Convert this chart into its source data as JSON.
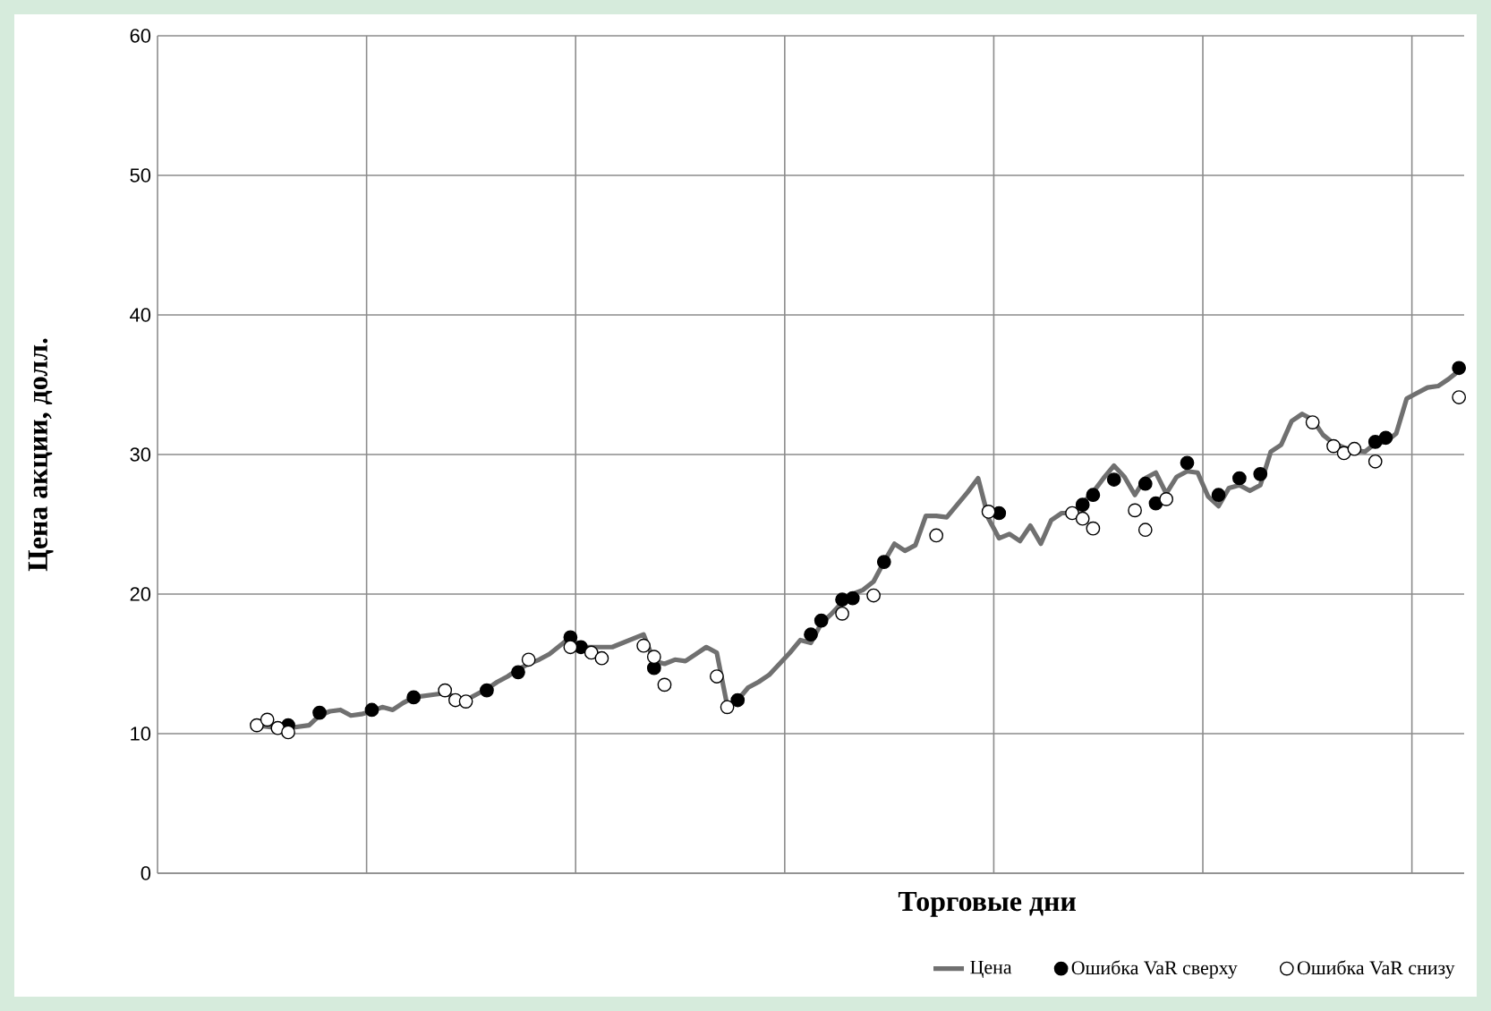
{
  "chart_data": {
    "type": "line",
    "xlabel": "Торговые дни",
    "ylabel": "Цена акции, долл.",
    "ylim": [
      0,
      60
    ],
    "yticks": [
      0,
      10,
      20,
      30,
      40,
      50,
      60
    ],
    "grid": true,
    "legend": "bottom",
    "categories": [
      null,
      null,
      null,
      null,
      null,
      null,
      null,
      null,
      null,
      null,
      null,
      null,
      null,
      null,
      null,
      null,
      null,
      null,
      null,
      null,
      null,
      null,
      null,
      null,
      null,
      null,
      null,
      null,
      null,
      null,
      null,
      null,
      null,
      null,
      null,
      null,
      null,
      null,
      null,
      null,
      null,
      null,
      null,
      null,
      null,
      null,
      null,
      null,
      null,
      null,
      null,
      null,
      null,
      null,
      null,
      null,
      null,
      null,
      null,
      null,
      null,
      null,
      null,
      null,
      null,
      null,
      null,
      null,
      null,
      null,
      null,
      null,
      null,
      null,
      null,
      null,
      null,
      null,
      null,
      null,
      null,
      null,
      null,
      null,
      null,
      null,
      null,
      null,
      null,
      null,
      null,
      null,
      null,
      null,
      null,
      null,
      null,
      null,
      null,
      null,
      null,
      null,
      null,
      null,
      null,
      null,
      null,
      null,
      null,
      null,
      null,
      null,
      null,
      null,
      null,
      null,
      null,
      null,
      null,
      null,
      null,
      null,
      null,
      null,
      null
    ],
    "series": [
      {
        "name": "Цена",
        "color": "#707070",
        "values": [
          null,
          null,
          null,
          null,
          null,
          null,
          null,
          null,
          null,
          10.6,
          10.5,
          10.4,
          10.4,
          10.5,
          10.6,
          11.3,
          11.6,
          11.7,
          11.3,
          11.4,
          11.6,
          11.9,
          11.7,
          12.2,
          12.6,
          12.7,
          12.8,
          12.9,
          12.6,
          12.4,
          12.8,
          13.2,
          13.7,
          14.1,
          14.6,
          15.0,
          15.3,
          15.7,
          16.3,
          16.9,
          16.2,
          16.2,
          16.2,
          16.2,
          16.5,
          16.8,
          17.1,
          15.2,
          15.0,
          15.3,
          15.2,
          15.7,
          16.2,
          15.8,
          12.0,
          12.4,
          13.3,
          13.7,
          14.2,
          15.0,
          15.8,
          16.7,
          16.5,
          17.9,
          18.6,
          19.4,
          20.0,
          20.3,
          20.9,
          22.3,
          23.6,
          23.1,
          23.5,
          25.6,
          25.6,
          25.5,
          26.4,
          27.3,
          28.3,
          25.4,
          24.0,
          24.3,
          23.8,
          24.9,
          23.6,
          25.3,
          25.8,
          25.8,
          26.5,
          27.3,
          28.3,
          29.2,
          28.4,
          27.1,
          28.3,
          28.7,
          27.2,
          28.4,
          28.8,
          28.7,
          27.0,
          26.3,
          27.6,
          27.8,
          27.4,
          27.8,
          30.2,
          30.7,
          32.4,
          32.9,
          32.5,
          31.4,
          30.8,
          30.5,
          30.3,
          30.2,
          30.8,
          30.9,
          31.5,
          34.0,
          34.4,
          34.8,
          34.9,
          35.4,
          36.0
        ]
      },
      {
        "name": "Ошибка VaR сверху",
        "type": "scatter",
        "marker": "circle",
        "color": "#000000",
        "values": [
          null,
          null,
          null,
          null,
          null,
          null,
          null,
          null,
          null,
          null,
          null,
          null,
          10.6,
          null,
          null,
          11.5,
          null,
          null,
          null,
          null,
          11.7,
          null,
          null,
          null,
          12.6,
          null,
          null,
          null,
          null,
          null,
          null,
          13.1,
          null,
          null,
          14.4,
          null,
          null,
          null,
          null,
          16.9,
          16.2,
          null,
          null,
          null,
          null,
          null,
          null,
          14.7,
          null,
          null,
          null,
          null,
          null,
          null,
          null,
          12.4,
          null,
          null,
          null,
          null,
          null,
          null,
          17.1,
          18.1,
          null,
          19.6,
          19.7,
          null,
          null,
          22.3,
          null,
          null,
          null,
          null,
          null,
          null,
          null,
          null,
          null,
          null,
          25.8,
          null,
          null,
          null,
          null,
          null,
          null,
          null,
          26.4,
          27.1,
          null,
          28.2,
          null,
          null,
          27.9,
          26.5,
          null,
          null,
          29.4,
          null,
          null,
          27.1,
          null,
          28.3,
          null,
          28.6,
          null,
          null,
          null,
          null,
          null,
          null,
          null,
          null,
          null,
          null,
          30.9,
          31.2,
          null,
          null,
          null,
          null,
          null,
          null,
          36.2
        ]
      },
      {
        "name": "Ошибка VaR снизу",
        "type": "scatter",
        "marker": "circle",
        "color": "#ffffff",
        "values": [
          null,
          null,
          null,
          null,
          null,
          null,
          null,
          null,
          null,
          10.6,
          11.0,
          10.4,
          10.1,
          null,
          null,
          null,
          null,
          null,
          null,
          null,
          null,
          null,
          null,
          null,
          null,
          null,
          null,
          13.1,
          12.4,
          12.3,
          null,
          null,
          null,
          null,
          null,
          15.3,
          null,
          null,
          null,
          16.2,
          null,
          15.8,
          15.4,
          null,
          null,
          null,
          16.3,
          15.5,
          13.5,
          null,
          null,
          null,
          null,
          14.1,
          11.9,
          null,
          null,
          null,
          null,
          null,
          null,
          null,
          null,
          null,
          null,
          18.6,
          null,
          null,
          19.9,
          null,
          null,
          null,
          null,
          null,
          24.2,
          null,
          null,
          null,
          null,
          25.9,
          null,
          null,
          null,
          null,
          null,
          null,
          null,
          25.8,
          25.4,
          24.7,
          null,
          null,
          null,
          26.0,
          24.6,
          null,
          26.8,
          null,
          null,
          null,
          null,
          null,
          null,
          null,
          null,
          null,
          null,
          null,
          null,
          null,
          32.3,
          null,
          30.6,
          30.1,
          30.4,
          null,
          29.5,
          null,
          null,
          null,
          null,
          null,
          null,
          null,
          34.1
        ]
      }
    ]
  }
}
